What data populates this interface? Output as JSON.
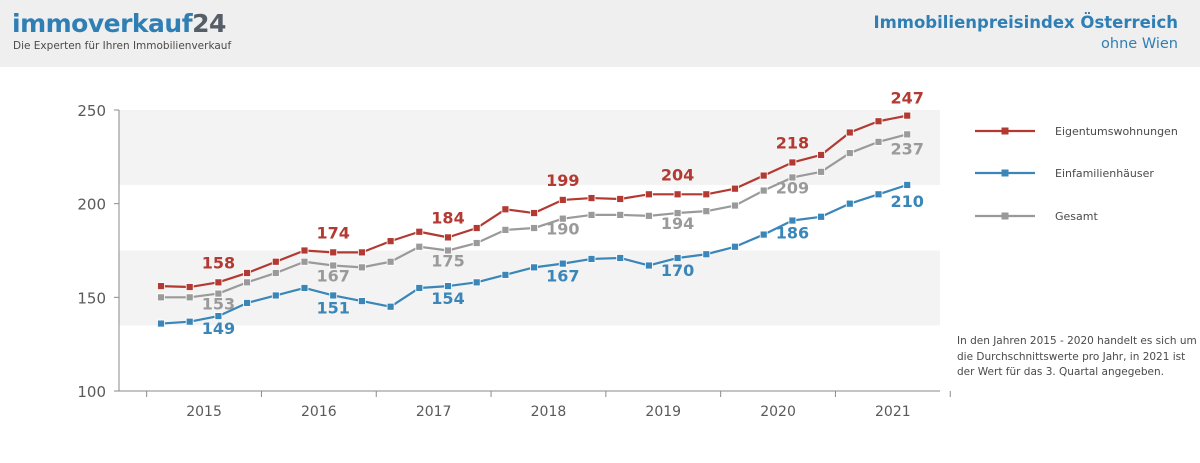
{
  "header": {
    "brand_text": "immoverkauf",
    "brand_number": "24",
    "tagline": "Die Experten für Ihren Immobilienverkauf",
    "title": "Immobilienpreisindex Österreich",
    "subtitle": "ohne Wien"
  },
  "note": "In den Jahren 2015 - 2020 handelt es sich um die Durchschnittswerte pro Jahr, in 2021 ist der Wert für das 3. Quartal angegeben.",
  "colors": {
    "eigentum": "#b23a32",
    "einfamilien": "#3a86b8",
    "gesamt": "#9a9a9a",
    "band": "#f3f3f3",
    "axis": "#8a8a8a"
  },
  "chart_data": {
    "type": "line",
    "title": "Immobilienpreisindex Österreich",
    "subtitle": "ohne Wien",
    "xlabel": "",
    "ylabel": "",
    "ylim": [
      100,
      250
    ],
    "yticks": [
      "100",
      "150",
      "200",
      "250"
    ],
    "years": [
      "2015",
      "2016",
      "2017",
      "2018",
      "2019",
      "2020",
      "2021"
    ],
    "x": [
      "2015-Q1",
      "2015-Q2",
      "2015-Q3",
      "2015-Q4",
      "2016-Q1",
      "2016-Q2",
      "2016-Q3",
      "2016-Q4",
      "2017-Q1",
      "2017-Q2",
      "2017-Q3",
      "2017-Q4",
      "2018-Q1",
      "2018-Q2",
      "2018-Q3",
      "2018-Q4",
      "2019-Q1",
      "2019-Q2",
      "2019-Q3",
      "2019-Q4",
      "2020-Q1",
      "2020-Q2",
      "2020-Q3",
      "2020-Q4",
      "2021-Q1",
      "2021-Q2",
      "2021-Q3"
    ],
    "legend_position": "right",
    "series": [
      {
        "name": "Eigentumswohnungen",
        "color": "#b23a32",
        "values": [
          156,
          155.5,
          158,
          163,
          169,
          175,
          174,
          174,
          180,
          185,
          182,
          187,
          197,
          195,
          202,
          203,
          202.5,
          205,
          205,
          205,
          208,
          215,
          222,
          226,
          238,
          244,
          247
        ],
        "labels": [
          {
            "index": 2,
            "text": "158"
          },
          {
            "index": 6,
            "text": "174"
          },
          {
            "index": 10,
            "text": "184"
          },
          {
            "index": 14,
            "text": "199"
          },
          {
            "index": 18,
            "text": "204"
          },
          {
            "index": 22,
            "text": "218"
          },
          {
            "index": 26,
            "text": "247"
          }
        ]
      },
      {
        "name": "Einfamilienhäuser",
        "color": "#3a86b8",
        "values": [
          136,
          137,
          140,
          147,
          151,
          155,
          151,
          148,
          145,
          155,
          156,
          158,
          162,
          166,
          168,
          170.5,
          171,
          167,
          171,
          173,
          177,
          183.5,
          191,
          193,
          200,
          205,
          210
        ],
        "labels": [
          {
            "index": 2,
            "text": "149"
          },
          {
            "index": 6,
            "text": "151"
          },
          {
            "index": 10,
            "text": "154"
          },
          {
            "index": 14,
            "text": "167"
          },
          {
            "index": 18,
            "text": "170"
          },
          {
            "index": 22,
            "text": "186"
          },
          {
            "index": 26,
            "text": "210"
          }
        ]
      },
      {
        "name": "Gesamt",
        "color": "#9a9a9a",
        "values": [
          150,
          150,
          152,
          158,
          163,
          169,
          167,
          166,
          169,
          177,
          175,
          179,
          186,
          187,
          192,
          194,
          194,
          193.5,
          195,
          196,
          199,
          207,
          214,
          217,
          227,
          233,
          237
        ],
        "labels": [
          {
            "index": 2,
            "text": "153"
          },
          {
            "index": 6,
            "text": "167"
          },
          {
            "index": 10,
            "text": "175"
          },
          {
            "index": 14,
            "text": "190"
          },
          {
            "index": 18,
            "text": "194"
          },
          {
            "index": 22,
            "text": "209"
          },
          {
            "index": 26,
            "text": "237"
          }
        ]
      }
    ]
  }
}
